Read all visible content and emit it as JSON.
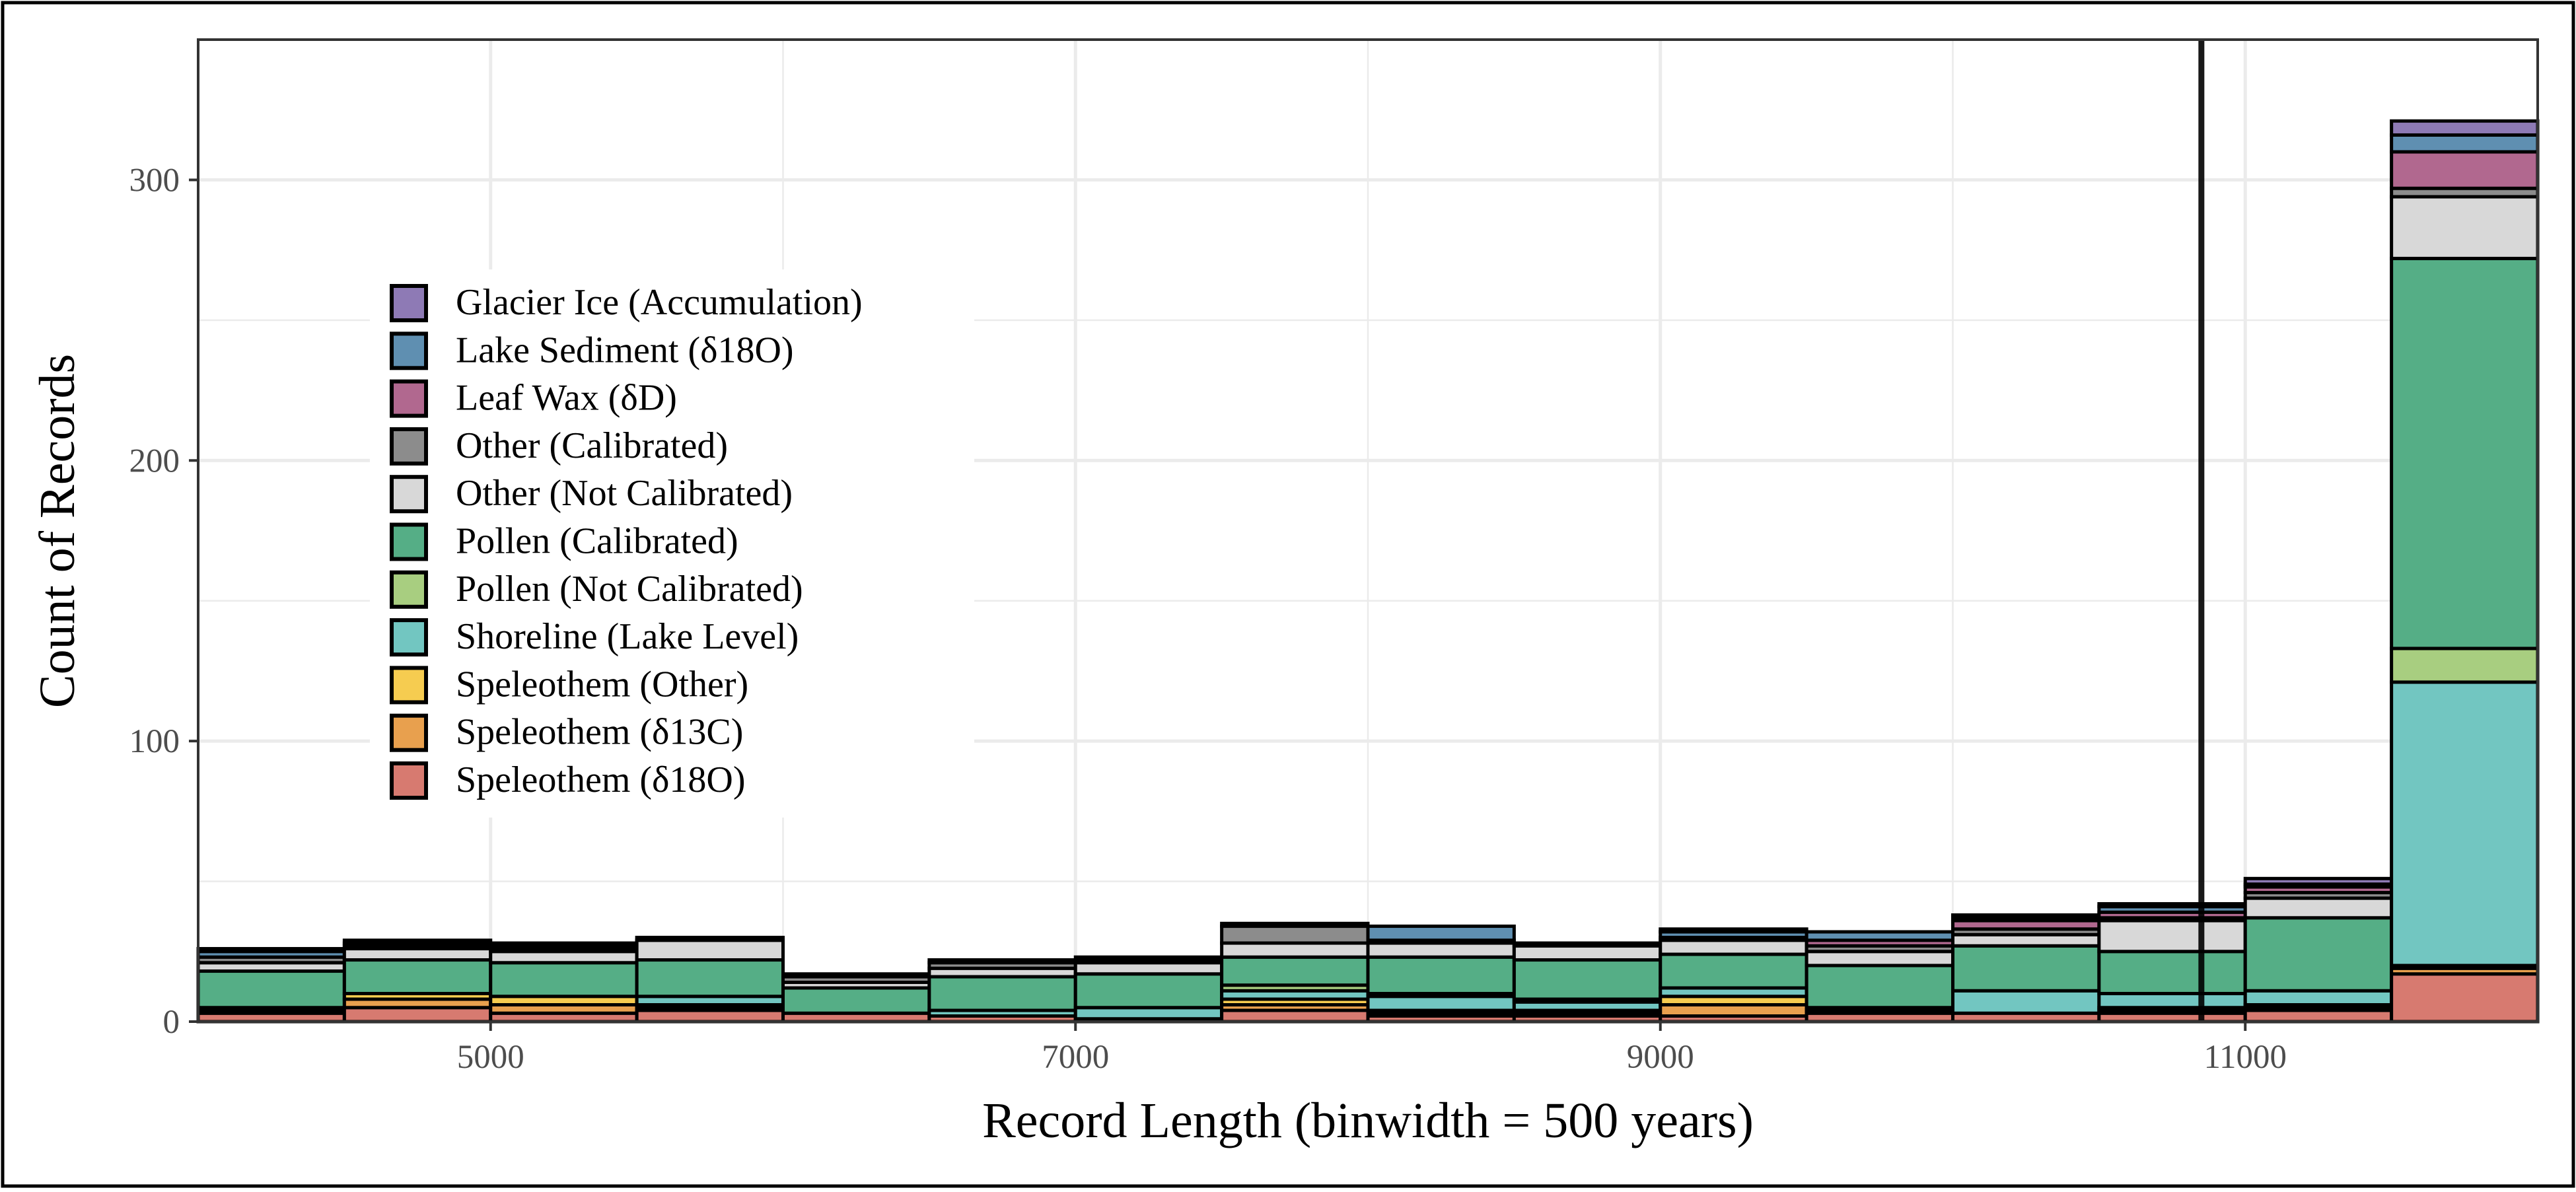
{
  "chart_data": {
    "type": "bar",
    "stacked": true,
    "xlabel": "Record Length (binwidth = 500 years)",
    "ylabel": "Count of Records",
    "xlim": [
      4000,
      12000
    ],
    "ylim": [
      0,
      350
    ],
    "x_ticks": [
      5000,
      7000,
      9000,
      11000
    ],
    "x_tick_labels": [
      "5000",
      "7000",
      "9000",
      "11000"
    ],
    "y_ticks": [
      0,
      100,
      200,
      300
    ],
    "y_tick_labels": [
      "0",
      "100",
      "200",
      "300"
    ],
    "grid": true,
    "legend_position": "left (inside plot)",
    "reference_line": {
      "x": 10850,
      "color": "#000000"
    },
    "bin_centers": [
      4250,
      4750,
      5250,
      5750,
      6250,
      6750,
      7250,
      7750,
      8250,
      8750,
      9250,
      9750,
      10250,
      10750,
      11250,
      11750
    ],
    "series": [
      {
        "name": "Speleothem (δ18O)",
        "color": "#D77A70",
        "values": [
          3,
          5,
          3,
          4,
          3,
          2,
          1,
          4,
          2,
          2,
          2,
          3,
          3,
          3,
          4,
          17
        ]
      },
      {
        "name": "Speleothem (δ13C)",
        "color": "#E8A04E",
        "values": [
          1,
          3,
          3,
          1,
          0,
          0,
          0,
          2,
          1,
          1,
          4,
          0,
          0,
          1,
          1,
          2
        ]
      },
      {
        "name": "Speleothem (Other)",
        "color": "#F6CC50",
        "values": [
          1,
          2,
          3,
          1,
          0,
          0,
          0,
          2,
          1,
          1,
          3,
          0,
          0,
          1,
          1,
          1
        ]
      },
      {
        "name": "Shoreline (Lake Level)",
        "color": "#72C6C1",
        "values": [
          0,
          0,
          0,
          3,
          0,
          2,
          4,
          3,
          5,
          3,
          3,
          1,
          8,
          5,
          5,
          101
        ]
      },
      {
        "name": "Pollen (Not Calibrated)",
        "color": "#A8CE80",
        "values": [
          0,
          0,
          0,
          0,
          0,
          0,
          0,
          2,
          1,
          1,
          0,
          1,
          0,
          0,
          0,
          12
        ]
      },
      {
        "name": "Pollen (Calibrated)",
        "color": "#55AE86",
        "values": [
          13,
          12,
          12,
          13,
          9,
          12,
          12,
          10,
          13,
          14,
          12,
          15,
          16,
          15,
          26,
          139
        ]
      },
      {
        "name": "Other (Not Calibrated)",
        "color": "#D8D8D8",
        "values": [
          3,
          4,
          4,
          7,
          2,
          3,
          4,
          5,
          5,
          5,
          5,
          5,
          4,
          11,
          7,
          22
        ]
      },
      {
        "name": "Other (Calibrated)",
        "color": "#8C8C8C",
        "values": [
          2,
          1,
          1,
          0,
          2,
          2,
          1,
          6,
          1,
          1,
          1,
          2,
          2,
          1,
          2,
          3
        ]
      },
      {
        "name": "Leaf Wax (δD)",
        "color": "#B1688F",
        "values": [
          0,
          0,
          0,
          0,
          0,
          0,
          0,
          0,
          0,
          0,
          0,
          2,
          3,
          2,
          2,
          13
        ]
      },
      {
        "name": "Lake Sediment (δ18O)",
        "color": "#5F8FB1",
        "values": [
          2,
          1,
          1,
          0,
          0,
          0,
          0,
          0,
          5,
          0,
          2,
          3,
          1,
          2,
          1,
          6
        ]
      },
      {
        "name": "Glacier Ice (Accumulation)",
        "color": "#8E7AB5",
        "values": [
          1,
          1,
          1,
          1,
          1,
          1,
          1,
          1,
          0,
          0,
          1,
          0,
          1,
          1,
          2,
          5
        ]
      }
    ],
    "legend_order": [
      "Glacier Ice (Accumulation)",
      "Lake Sediment (δ18O)",
      "Leaf Wax (δD)",
      "Other (Calibrated)",
      "Other (Not Calibrated)",
      "Pollen (Calibrated)",
      "Pollen (Not Calibrated)",
      "Shoreline (Lake Level)",
      "Speleothem (Other)",
      "Speleothem (δ13C)",
      "Speleothem (δ18O)"
    ]
  }
}
